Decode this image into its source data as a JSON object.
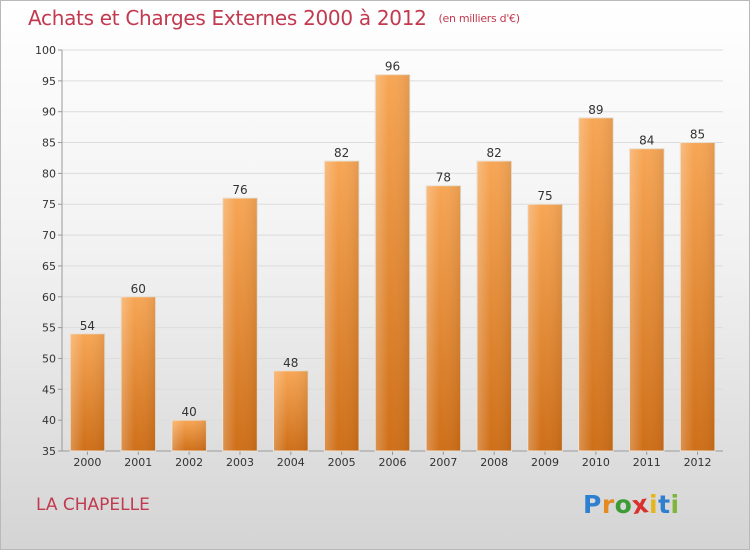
{
  "header": {
    "title": "Achats et Charges Externes 2000 à 2012",
    "unit": "(en milliers d'€)"
  },
  "footer": {
    "commune": "LA CHAPELLE",
    "logo_letters": [
      "P",
      "r",
      "o",
      "x",
      "i",
      "t",
      "i"
    ]
  },
  "colors": {
    "title": "#c23a4f",
    "bar_top": "#f7a655",
    "bar_bottom": "#cf6f18",
    "logo": [
      "#2f7fd0",
      "#e48a1f",
      "#3d9b35",
      "#d9302c",
      "#e4b51c",
      "#2f7fd0",
      "#7fb43d"
    ]
  },
  "chart_data": {
    "type": "bar",
    "title": "Achats et Charges Externes 2000 à 2012",
    "subtitle": "(en milliers d'€)",
    "xlabel": "",
    "ylabel": "",
    "categories": [
      "2000",
      "2001",
      "2002",
      "2003",
      "2004",
      "2005",
      "2006",
      "2007",
      "2008",
      "2009",
      "2010",
      "2011",
      "2012"
    ],
    "values": [
      54,
      60,
      40,
      76,
      48,
      82,
      96,
      78,
      82,
      75,
      89,
      84,
      85
    ],
    "ylim": [
      35,
      100
    ],
    "yticks": [
      35,
      40,
      45,
      50,
      55,
      60,
      65,
      70,
      75,
      80,
      85,
      90,
      95,
      100
    ],
    "grid": true,
    "legend": "none"
  }
}
